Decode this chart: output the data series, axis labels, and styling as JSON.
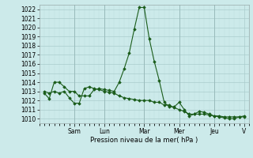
{
  "bg_color": "#cceaea",
  "grid_color_major": "#aacccc",
  "grid_color_minor": "#bbdddd",
  "line_color": "#1a5c1a",
  "marker_color": "#1a5c1a",
  "xlabel": "Pression niveau de la mer( hPa )",
  "ylim": [
    1009.5,
    1022.5
  ],
  "xlim": [
    0,
    42
  ],
  "yticks": [
    1010,
    1011,
    1012,
    1013,
    1014,
    1015,
    1016,
    1017,
    1018,
    1019,
    1020,
    1021,
    1022
  ],
  "line1_x": [
    1,
    2,
    3,
    4,
    5,
    6,
    7,
    8,
    9,
    10,
    11,
    12,
    13,
    14,
    15,
    16,
    17,
    18,
    19,
    20,
    21,
    22,
    23,
    24,
    25,
    26,
    27,
    28,
    29,
    30,
    31,
    32,
    33,
    34,
    35,
    36,
    37,
    38,
    39,
    40,
    41
  ],
  "line1_y": [
    1012.8,
    1012.2,
    1014.0,
    1014.0,
    1013.5,
    1013.0,
    1013.0,
    1012.5,
    1012.5,
    1012.5,
    1013.2,
    1013.3,
    1013.2,
    1013.1,
    1013.0,
    1014.0,
    1015.5,
    1017.2,
    1019.8,
    1022.2,
    1022.2,
    1018.8,
    1016.3,
    1014.2,
    1011.8,
    1011.3,
    1011.3,
    1011.8,
    1011.0,
    1010.3,
    1010.5,
    1010.8,
    1010.7,
    1010.5,
    1010.3,
    1010.2,
    1010.1,
    1010.0,
    1010.0,
    1010.2,
    1010.3
  ],
  "line2_x": [
    1,
    2,
    3,
    4,
    5,
    6,
    7,
    8,
    9,
    10,
    11,
    12,
    13,
    14,
    15,
    16,
    17,
    18,
    19,
    20,
    21,
    22,
    23,
    24,
    25,
    26,
    27,
    28,
    29,
    30,
    31,
    32,
    33,
    34,
    35,
    36,
    37,
    38,
    39,
    40,
    41
  ],
  "line2_y": [
    1013.0,
    1012.8,
    1013.0,
    1012.8,
    1013.0,
    1012.3,
    1011.7,
    1011.7,
    1013.3,
    1013.5,
    1013.3,
    1013.2,
    1013.0,
    1012.9,
    1012.8,
    1012.5,
    1012.3,
    1012.2,
    1012.1,
    1012.0,
    1012.0,
    1012.0,
    1011.8,
    1011.8,
    1011.5,
    1011.5,
    1011.2,
    1011.0,
    1010.8,
    1010.5,
    1010.5,
    1010.5,
    1010.5,
    1010.4,
    1010.3,
    1010.3,
    1010.2,
    1010.2,
    1010.2,
    1010.2,
    1010.2
  ],
  "day_tick_positions": [
    7,
    13,
    21,
    28,
    35,
    41
  ],
  "day_tick_labels": [
    "Sam",
    "Lun",
    "Mar",
    "Mer",
    "Jeu",
    "V"
  ],
  "day_vline_positions": [
    7,
    13,
    21,
    28,
    35
  ]
}
